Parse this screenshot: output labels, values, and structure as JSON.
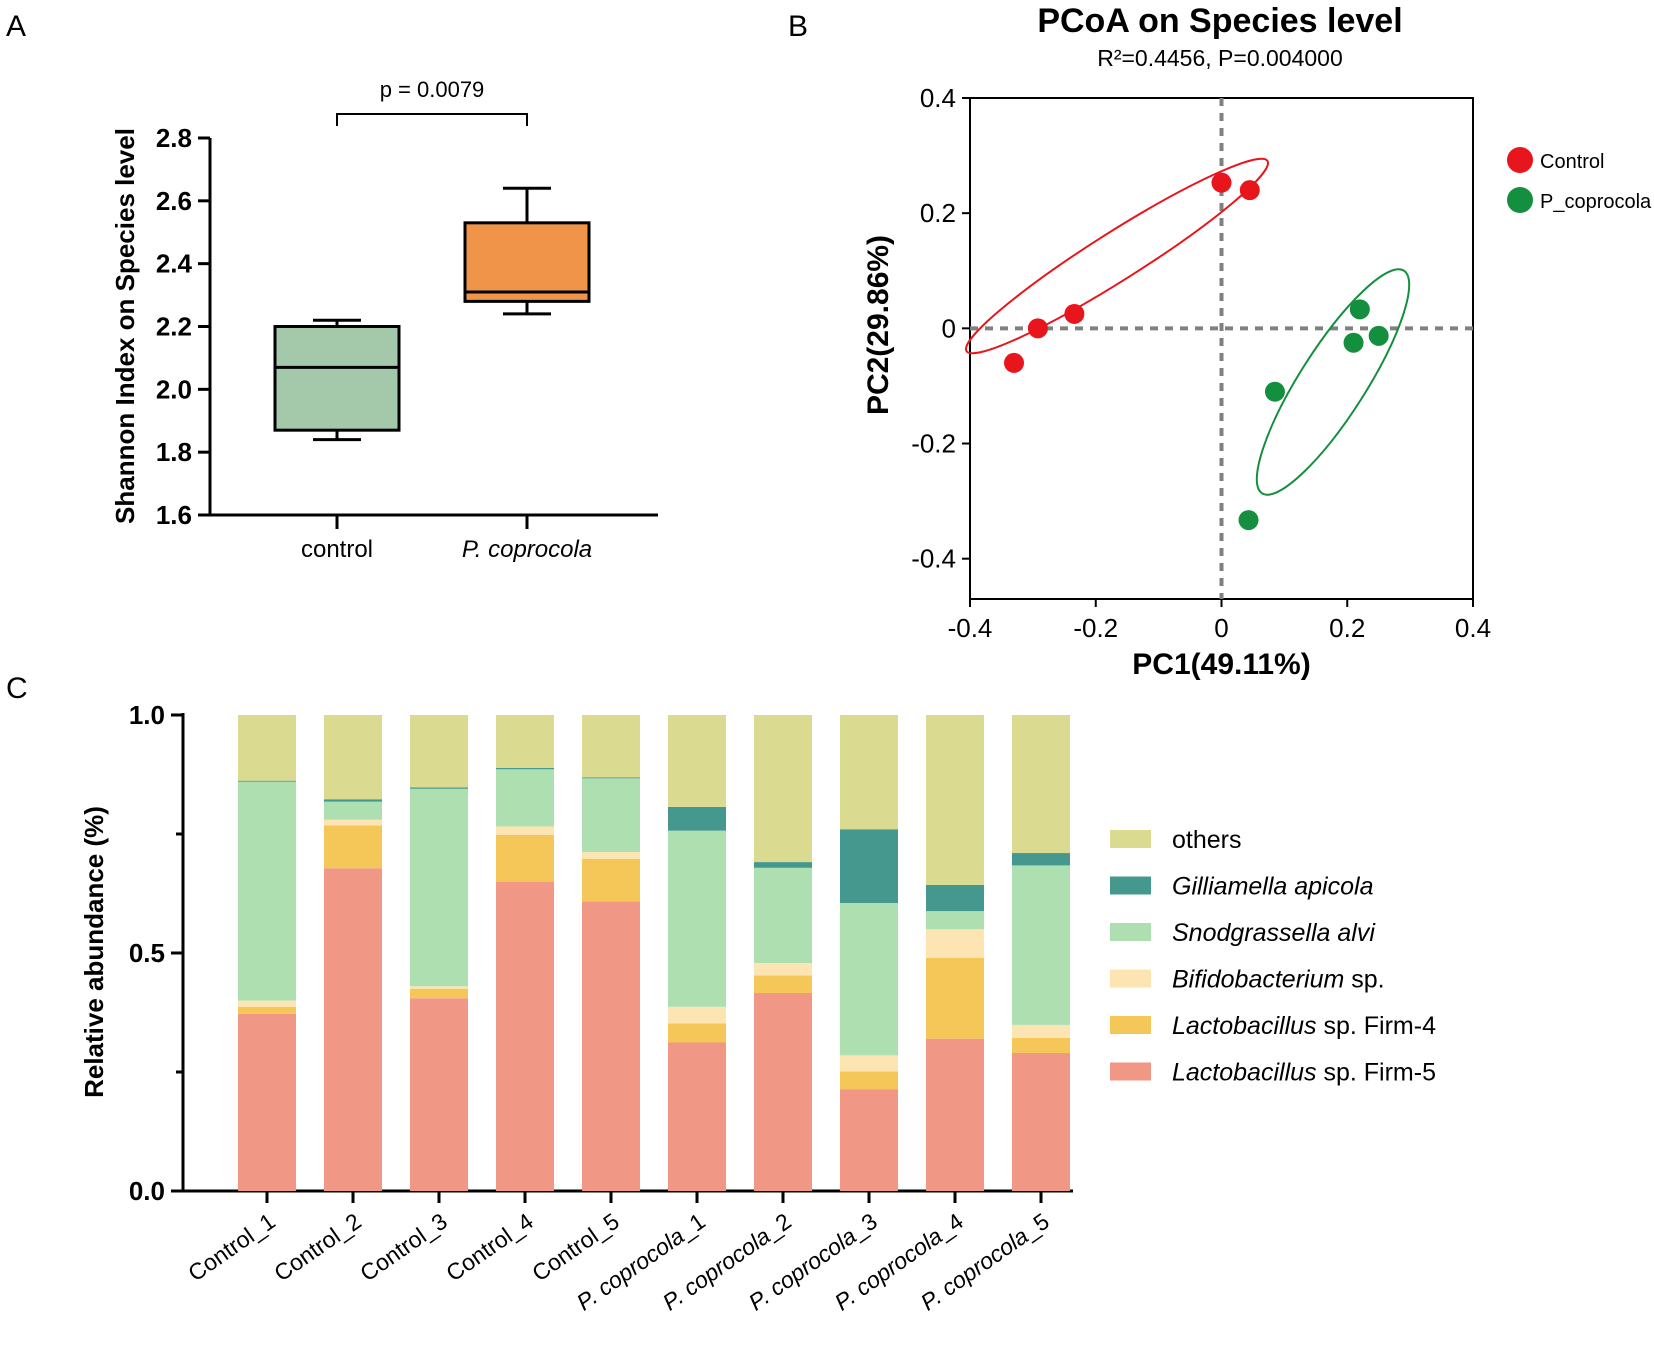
{
  "panel_letters": {
    "a": "A",
    "b": "B",
    "c": "C"
  },
  "colors": {
    "control_box": "#a4c9aa",
    "pcoprocola_box": "#f0944a",
    "control_points": "#e8151c",
    "pcoprocola_points": "#138f3f",
    "others": "#dadb91",
    "gilliamella": "#45988e",
    "snodgrassella": "#addfb1",
    "bifidobacterium": "#fde4b3",
    "firm4": "#f5c758",
    "firm5": "#f09785"
  },
  "chart_data": [
    {
      "type": "box",
      "panel": "A",
      "title": "",
      "xlabel": "",
      "ylabel": "Shannon Index on Species level",
      "ylim": [
        1.6,
        2.8
      ],
      "yticks": [
        1.6,
        1.8,
        2.0,
        2.2,
        2.4,
        2.6,
        2.8
      ],
      "yticklabels": [
        "1.6",
        "1.8",
        "2.0",
        "2.2",
        "2.4",
        "2.6",
        "2.8"
      ],
      "categories": [
        "control",
        "P. coprocola"
      ],
      "boxes": [
        {
          "name": "control",
          "min": 1.84,
          "q1": 1.87,
          "median": 2.07,
          "q3": 2.2,
          "max": 2.22
        },
        {
          "name": "P. coprocola",
          "min": 2.24,
          "q1": 2.28,
          "median": 2.31,
          "q3": 2.53,
          "max": 2.64
        }
      ],
      "significance": {
        "label": "p = 0.0079",
        "between": [
          0,
          1
        ]
      }
    },
    {
      "type": "scatter",
      "panel": "B",
      "title": "PCoA on Species level",
      "subtitle": "R²=0.4456, P=0.004000",
      "xlabel": "PC1(49.11%)",
      "ylabel": "PC2(29.86%)",
      "xlim": [
        -0.4,
        0.4
      ],
      "ylim": [
        -0.47,
        0.4
      ],
      "xticks": [
        -0.4,
        -0.2,
        0,
        0.2,
        0.4
      ],
      "xticklabels": [
        "-0.4",
        "-0.2",
        "0",
        "0.2",
        "0.4"
      ],
      "yticks": [
        -0.4,
        -0.2,
        0,
        0.2,
        0.4
      ],
      "yticklabels": [
        "-0.4",
        "-0.2",
        "0",
        "0.2",
        "0.4"
      ],
      "series": [
        {
          "name": "Control",
          "points": [
            [
              -0.33,
              -0.06
            ],
            [
              -0.292,
              0.0
            ],
            [
              -0.234,
              0.025
            ],
            [
              0.0,
              0.253
            ],
            [
              0.045,
              0.24
            ]
          ]
        },
        {
          "name": "P_coprocola",
          "points": [
            [
              0.085,
              -0.11
            ],
            [
              0.21,
              -0.025
            ],
            [
              0.22,
              0.033
            ],
            [
              0.25,
              -0.013
            ],
            [
              0.043,
              -0.333
            ]
          ]
        }
      ]
    },
    {
      "type": "stacked_bar",
      "panel": "C",
      "title": "",
      "xlabel": "",
      "ylabel": "Relative abundance (%)",
      "ylim": [
        0,
        1
      ],
      "yticks": [
        0,
        0.5,
        1
      ],
      "yticklabels": [
        "0.0",
        "0.5",
        "1.0"
      ],
      "categories": [
        "Control_1",
        "Control_2",
        "Control_3",
        "Control_4",
        "Control_5",
        "P. coprocola_1",
        "P. coprocola_2",
        "P. coprocola_3",
        "P. coprocola_4",
        "P. coprocola_5"
      ],
      "series": [
        {
          "name": "Lactobacillus sp. Firm-5",
          "values": [
            0.372,
            0.678,
            0.405,
            0.65,
            0.608,
            0.312,
            0.416,
            0.214,
            0.32,
            0.29
          ]
        },
        {
          "name": "Lactobacillus sp. Firm-4",
          "values": [
            0.015,
            0.09,
            0.02,
            0.098,
            0.09,
            0.04,
            0.037,
            0.037,
            0.17,
            0.032
          ]
        },
        {
          "name": "Bifidobacterium sp.",
          "values": [
            0.013,
            0.012,
            0.005,
            0.018,
            0.014,
            0.035,
            0.026,
            0.034,
            0.06,
            0.027
          ]
        },
        {
          "name": "Snodgrassella alvi",
          "values": [
            0.46,
            0.038,
            0.415,
            0.12,
            0.155,
            0.37,
            0.2,
            0.32,
            0.038,
            0.335
          ]
        },
        {
          "name": "Gilliamella apicola",
          "values": [
            0.002,
            0.005,
            0.003,
            0.003,
            0.002,
            0.05,
            0.012,
            0.155,
            0.055,
            0.026
          ]
        },
        {
          "name": "others",
          "values": [
            0.138,
            0.177,
            0.152,
            0.111,
            0.131,
            0.193,
            0.309,
            0.24,
            0.357,
            0.29
          ]
        }
      ],
      "legend": [
        {
          "key": "others",
          "italic": "",
          "rest": "others"
        },
        {
          "key": "gilliamella",
          "italic": "Gilliamella apicola",
          "rest": ""
        },
        {
          "key": "snodgrassella",
          "italic": "Snodgrassella alvi",
          "rest": ""
        },
        {
          "key": "bifidobacterium",
          "italic": "Bifidobacterium",
          "rest": " sp."
        },
        {
          "key": "firm4",
          "italic": "Lactobacillus",
          "rest": " sp. Firm-4"
        },
        {
          "key": "firm5",
          "italic": "Lactobacillus",
          "rest": " sp. Firm-5"
        }
      ],
      "xticklabels": [
        {
          "italic": "",
          "rest": "Control_1"
        },
        {
          "italic": "",
          "rest": "Control_2"
        },
        {
          "italic": "",
          "rest": "Control_3"
        },
        {
          "italic": "",
          "rest": "Control_4"
        },
        {
          "italic": "",
          "rest": "Control_5"
        },
        {
          "italic": "P. coprocola",
          "rest": "_1"
        },
        {
          "italic": "P. coprocola",
          "rest": "_2"
        },
        {
          "italic": "P. coprocola",
          "rest": "_3"
        },
        {
          "italic": "P. coprocola",
          "rest": "_4"
        },
        {
          "italic": "P. coprocola",
          "rest": "_5"
        }
      ]
    }
  ]
}
